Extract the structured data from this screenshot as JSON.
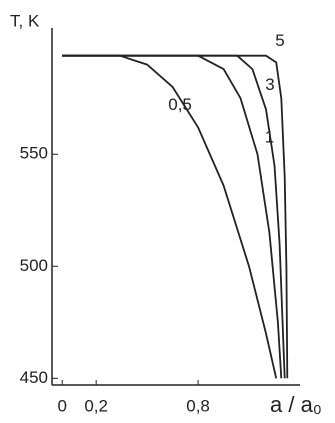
{
  "chart_data": {
    "type": "line",
    "y_label": "T, K",
    "x_label": "a / a₀",
    "xlim": [
      -0.06,
      1.4
    ],
    "ylim": [
      447,
      601
    ],
    "xticks": [
      0,
      {
        "value": 0.2,
        "label": "0,2"
      },
      {
        "value": 0.8,
        "label": "0,8"
      }
    ],
    "yticks": [
      450,
      500,
      550
    ],
    "color": "#222222",
    "series": [
      {
        "name": "0,5",
        "x": [
          0,
          0.34,
          0.5,
          0.65,
          0.8,
          0.95,
          1.1,
          1.2,
          1.26
        ],
        "values": [
          594,
          594,
          590,
          580,
          562,
          536,
          500,
          470,
          450
        ]
      },
      {
        "name": "1",
        "x": [
          0,
          0.8,
          0.95,
          1.05,
          1.15,
          1.22,
          1.27,
          1.29
        ],
        "values": [
          594,
          594,
          588,
          575,
          550,
          515,
          475,
          450
        ]
      },
      {
        "name": "3",
        "x": [
          0,
          1.03,
          1.12,
          1.2,
          1.25,
          1.28,
          1.3,
          1.31
        ],
        "values": [
          594,
          594,
          588,
          570,
          545,
          510,
          470,
          450
        ]
      },
      {
        "name": "5",
        "x": [
          0,
          1.2,
          1.26,
          1.29,
          1.31,
          1.32,
          1.325
        ],
        "values": [
          594,
          594,
          591,
          575,
          540,
          500,
          450
        ]
      }
    ]
  }
}
